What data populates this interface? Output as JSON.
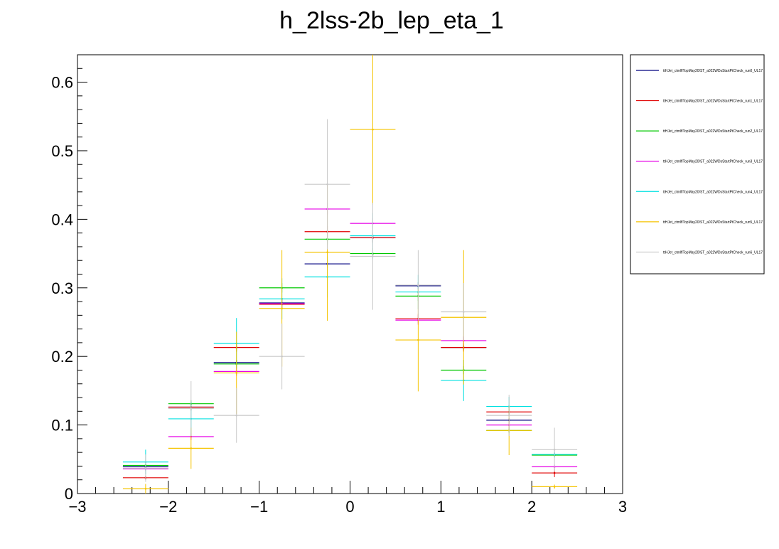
{
  "chart_data": {
    "type": "scatter",
    "title": "h_2lss-2b_lep_eta_1",
    "xlim": [
      -3,
      3
    ],
    "ylim": [
      0,
      0.64
    ],
    "x_ticks": [
      "−3",
      "−2",
      "−1",
      "0",
      "1",
      "2",
      "3"
    ],
    "y_ticks": [
      "0",
      "0.1",
      "0.2",
      "0.3",
      "0.4",
      "0.5",
      "0.6"
    ],
    "bin_edges": [
      -2.5,
      -2.0,
      -1.5,
      -1.0,
      -0.5,
      0.0,
      0.5,
      1.0,
      1.5,
      2.0,
      2.5
    ],
    "legend_position": "right",
    "series": [
      {
        "name": "ttHJet_ctmlflTopMay20/ST_a022WDsStartPtCheck_run0_UL17",
        "color": "#00007f",
        "values": [
          0.039,
          0.126,
          0.191,
          0.278,
          0.335,
          0.373,
          0.303,
          0.213,
          0.107,
          0.057
        ],
        "errors": [
          0.003,
          0.004,
          0.004,
          0.005,
          0.006,
          0.006,
          0.005,
          0.004,
          0.003,
          0.003
        ]
      },
      {
        "name": "ttHJet_ctmlflTopMay20/ST_a022WDsStartPtCheck_run1_UL17",
        "color": "#e00000",
        "values": [
          0.023,
          0.126,
          0.213,
          0.276,
          0.382,
          0.373,
          0.255,
          0.213,
          0.119,
          0.03
        ],
        "errors": [
          0.003,
          0.005,
          0.006,
          0.007,
          0.008,
          0.008,
          0.007,
          0.006,
          0.005,
          0.006
        ]
      },
      {
        "name": "ttHJet_ctmlflTopMay20/ST_a022WDsStartPtCheck_run2_UL17",
        "color": "#00c800",
        "values": [
          0.041,
          0.131,
          0.189,
          0.3,
          0.371,
          0.35,
          0.288,
          0.18,
          0.092,
          0.056
        ],
        "errors": [
          0.003,
          0.005,
          0.006,
          0.007,
          0.008,
          0.008,
          0.007,
          0.006,
          0.004,
          0.003
        ]
      },
      {
        "name": "ttHJet_ctmlflTopMay20/ST_a022WDsStartPtCheck_run3_UL17",
        "color": "#e600e6",
        "values": [
          0.036,
          0.083,
          0.178,
          0.277,
          0.415,
          0.394,
          0.253,
          0.223,
          0.1,
          0.039
        ],
        "errors": [
          0.003,
          0.005,
          0.006,
          0.007,
          0.008,
          0.008,
          0.007,
          0.006,
          0.005,
          0.003
        ]
      },
      {
        "name": "ttHJet_ctmlflTopMay20/ST_a022WDsStartPtCheck_run4_UL17",
        "color": "#00e0e0",
        "values": [
          0.046,
          0.109,
          0.219,
          0.284,
          0.316,
          0.376,
          0.294,
          0.165,
          0.127,
          0.057
        ],
        "errors": [
          0.018,
          0.025,
          0.037,
          0.03,
          0.03,
          0.033,
          0.025,
          0.03,
          0.014,
          0.005
        ]
      },
      {
        "name": "ttHJet_ctmlflTopMay20/ST_a022WDsStartPtCheck_run5_UL17",
        "color": "#f5c400",
        "values": [
          0.007,
          0.066,
          0.176,
          0.27,
          0.352,
          0.531,
          0.224,
          0.257,
          0.092,
          0.01
        ],
        "errors": [
          0.007,
          0.03,
          0.06,
          0.085,
          0.1,
          0.11,
          0.075,
          0.098,
          0.036,
          0.003
        ]
      },
      {
        "name": "ttHJet_ctmlflTopMay20/ST_a022WDsStartPtCheck_run6_UL17",
        "color": "#c8c8c8",
        "values": [
          0.037,
          0.124,
          0.114,
          0.2,
          0.451,
          0.346,
          0.304,
          0.265,
          0.114,
          0.064
        ],
        "errors": [
          0.02,
          0.04,
          0.04,
          0.048,
          0.095,
          0.078,
          0.051,
          0.042,
          0.03,
          0.032
        ]
      }
    ]
  }
}
